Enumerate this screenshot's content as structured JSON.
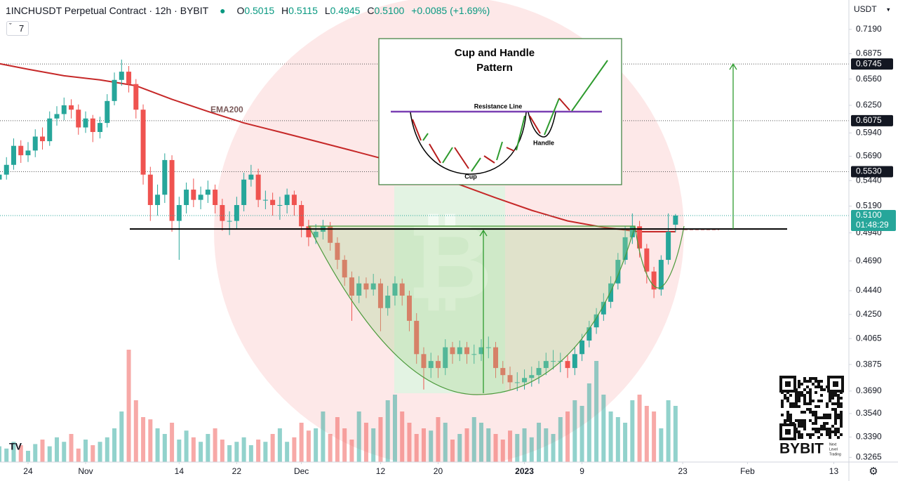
{
  "chart_data": {
    "type": "candlestick",
    "title": "1INCHUSDT Perpetual Contract · 12h · BYBIT",
    "header": {
      "open_label": "O",
      "open": "0.5015",
      "high_label": "H",
      "high": "0.5115",
      "low_label": "L",
      "low": "0.4945",
      "close_label": "C",
      "close": "0.5100",
      "change": "+0.0085 (+1.69%)"
    },
    "currency": "USDT",
    "indicator_count": "7",
    "log_scale": true,
    "up_color": "#26a69a",
    "down_color": "#ef5350",
    "ylim": [
      0.3237,
      0.759
    ],
    "yticks": [
      {
        "value": 0.719,
        "label": "0.7190"
      },
      0.6875,
      {
        "value": 0.656,
        "label": "0.6560"
      },
      {
        "value": 0.625,
        "label": "0.6250"
      },
      {
        "value": 0.594,
        "label": "0.5940"
      },
      {
        "value": 0.569,
        "label": "0.5690"
      },
      {
        "value": 0.544,
        "label": "0.5440"
      },
      {
        "value": 0.519,
        "label": "0.5190"
      },
      {
        "value": 0.494,
        "label": "0.4940"
      },
      {
        "value": 0.469,
        "label": "0.4690"
      },
      {
        "value": 0.444,
        "label": "0.4440"
      },
      {
        "value": 0.425,
        "label": "0.4250"
      },
      0.4065,
      0.3875,
      {
        "value": 0.369,
        "label": "0.3690"
      },
      {
        "value": 0.354,
        "label": "0.3540"
      },
      {
        "value": 0.339,
        "label": "0.3390"
      },
      0.3265
    ],
    "xlim": [
      -3.9,
      114.1
    ],
    "xticks": [
      {
        "value": 0,
        "label": "24"
      },
      {
        "value": 8,
        "label": "Nov"
      },
      {
        "value": 21,
        "label": "14"
      },
      {
        "value": 29,
        "label": "22"
      },
      {
        "value": 38,
        "label": "Dec"
      },
      {
        "value": 49,
        "label": "12"
      },
      {
        "value": 57,
        "label": "20"
      },
      {
        "value": 69,
        "label": "2023"
      },
      {
        "value": 77,
        "label": "9"
      },
      {
        "value": 91,
        "label": "23"
      },
      {
        "value": 100,
        "label": "Feb"
      },
      {
        "value": 112,
        "label": "13"
      }
    ],
    "x": [
      -4,
      -3,
      -2,
      -1,
      0,
      1,
      2,
      3,
      4,
      5,
      6,
      7,
      8,
      9,
      10,
      11,
      12,
      13,
      14,
      15,
      16,
      17,
      18,
      19,
      20,
      21,
      22,
      23,
      24,
      25,
      26,
      27,
      28,
      29,
      30,
      31,
      32,
      33,
      34,
      35,
      36,
      37,
      38,
      39,
      40,
      41,
      42,
      43,
      44,
      45,
      46,
      47,
      48,
      49,
      50,
      51,
      52,
      53,
      54,
      55,
      56,
      57,
      58,
      59,
      60,
      61,
      62,
      63,
      64,
      65,
      66,
      67,
      68,
      69,
      70,
      71,
      72,
      73,
      74,
      75,
      76,
      77,
      78,
      79,
      80,
      81,
      82,
      83,
      84,
      85,
      86,
      87,
      88,
      89,
      90
    ],
    "ohlc": [
      [
        0.545,
        0.562,
        0.538,
        0.55
      ],
      [
        0.55,
        0.568,
        0.545,
        0.56
      ],
      [
        0.56,
        0.588,
        0.555,
        0.58
      ],
      [
        0.58,
        0.586,
        0.562,
        0.57
      ],
      [
        0.57,
        0.584,
        0.563,
        0.575
      ],
      [
        0.575,
        0.598,
        0.568,
        0.59
      ],
      [
        0.59,
        0.6,
        0.576,
        0.585
      ],
      [
        0.585,
        0.618,
        0.58,
        0.61
      ],
      [
        0.61,
        0.624,
        0.602,
        0.615
      ],
      [
        0.615,
        0.634,
        0.608,
        0.625
      ],
      [
        0.625,
        0.632,
        0.61,
        0.62
      ],
      [
        0.62,
        0.626,
        0.592,
        0.6
      ],
      [
        0.6,
        0.618,
        0.594,
        0.61
      ],
      [
        0.61,
        0.614,
        0.584,
        0.595
      ],
      [
        0.595,
        0.612,
        0.588,
        0.605
      ],
      [
        0.605,
        0.638,
        0.6,
        0.63
      ],
      [
        0.63,
        0.664,
        0.625,
        0.655
      ],
      [
        0.655,
        0.68,
        0.648,
        0.665
      ],
      [
        0.665,
        0.672,
        0.64,
        0.65
      ],
      [
        0.65,
        0.656,
        0.61,
        0.62
      ],
      [
        0.62,
        0.626,
        0.54,
        0.55
      ],
      [
        0.55,
        0.558,
        0.505,
        0.52
      ],
      [
        0.52,
        0.54,
        0.51,
        0.53
      ],
      [
        0.53,
        0.572,
        0.522,
        0.565
      ],
      [
        0.565,
        0.57,
        0.495,
        0.505
      ],
      [
        0.505,
        0.528,
        0.47,
        0.52
      ],
      [
        0.52,
        0.542,
        0.512,
        0.535
      ],
      [
        0.535,
        0.546,
        0.518,
        0.525
      ],
      [
        0.525,
        0.538,
        0.516,
        0.53
      ],
      [
        0.53,
        0.544,
        0.522,
        0.535
      ],
      [
        0.535,
        0.54,
        0.512,
        0.52
      ],
      [
        0.52,
        0.526,
        0.496,
        0.505
      ],
      [
        0.505,
        0.514,
        0.492,
        0.505
      ],
      [
        0.505,
        0.528,
        0.498,
        0.52
      ],
      [
        0.52,
        0.552,
        0.514,
        0.545
      ],
      [
        0.545,
        0.56,
        0.538,
        0.55
      ],
      [
        0.55,
        0.556,
        0.518,
        0.525
      ],
      [
        0.525,
        0.534,
        0.516,
        0.525
      ],
      [
        0.525,
        0.532,
        0.51,
        0.52
      ],
      [
        0.52,
        0.528,
        0.506,
        0.52
      ],
      [
        0.52,
        0.536,
        0.512,
        0.53
      ],
      [
        0.53,
        0.534,
        0.51,
        0.52
      ],
      [
        0.52,
        0.524,
        0.49,
        0.5
      ],
      [
        0.5,
        0.506,
        0.482,
        0.49
      ],
      [
        0.49,
        0.502,
        0.484,
        0.495
      ],
      [
        0.495,
        0.506,
        0.488,
        0.5
      ],
      [
        0.5,
        0.504,
        0.478,
        0.485
      ],
      [
        0.485,
        0.49,
        0.462,
        0.47
      ],
      [
        0.47,
        0.474,
        0.448,
        0.455
      ],
      [
        0.455,
        0.46,
        0.42,
        0.44
      ],
      [
        0.44,
        0.456,
        0.434,
        0.45
      ],
      [
        0.45,
        0.455,
        0.438,
        0.445
      ],
      [
        0.445,
        0.458,
        0.44,
        0.45
      ],
      [
        0.45,
        0.454,
        0.412,
        0.43
      ],
      [
        0.43,
        0.448,
        0.424,
        0.44
      ],
      [
        0.44,
        0.456,
        0.432,
        0.45
      ],
      [
        0.45,
        0.454,
        0.432,
        0.44
      ],
      [
        0.44,
        0.444,
        0.412,
        0.42
      ],
      [
        0.42,
        0.426,
        0.388,
        0.395
      ],
      [
        0.395,
        0.4,
        0.37,
        0.385
      ],
      [
        0.385,
        0.396,
        0.378,
        0.39
      ],
      [
        0.39,
        0.394,
        0.378,
        0.385
      ],
      [
        0.385,
        0.406,
        0.38,
        0.4
      ],
      [
        0.4,
        0.404,
        0.388,
        0.395
      ],
      [
        0.395,
        0.405,
        0.39,
        0.4
      ],
      [
        0.4,
        0.404,
        0.388,
        0.395
      ],
      [
        0.395,
        0.402,
        0.388,
        0.395
      ],
      [
        0.395,
        0.406,
        0.39,
        0.4
      ],
      [
        0.4,
        0.408,
        0.392,
        0.4
      ],
      [
        0.4,
        0.404,
        0.378,
        0.385
      ],
      [
        0.385,
        0.39,
        0.374,
        0.38
      ],
      [
        0.38,
        0.386,
        0.37,
        0.375
      ],
      [
        0.375,
        0.382,
        0.369,
        0.375
      ],
      [
        0.375,
        0.384,
        0.37,
        0.378
      ],
      [
        0.378,
        0.386,
        0.372,
        0.38
      ],
      [
        0.38,
        0.39,
        0.374,
        0.385
      ],
      [
        0.385,
        0.396,
        0.38,
        0.39
      ],
      [
        0.39,
        0.398,
        0.384,
        0.39
      ],
      [
        0.39,
        0.396,
        0.382,
        0.39
      ],
      [
        0.39,
        0.394,
        0.378,
        0.385
      ],
      [
        0.385,
        0.4,
        0.38,
        0.395
      ],
      [
        0.395,
        0.41,
        0.39,
        0.405
      ],
      [
        0.405,
        0.42,
        0.4,
        0.415
      ],
      [
        0.415,
        0.43,
        0.41,
        0.425
      ],
      [
        0.425,
        0.442,
        0.42,
        0.435
      ],
      [
        0.435,
        0.456,
        0.43,
        0.45
      ],
      [
        0.45,
        0.476,
        0.445,
        0.47
      ],
      [
        0.47,
        0.5,
        0.466,
        0.49
      ],
      [
        0.49,
        0.512,
        0.484,
        0.5
      ],
      [
        0.5,
        0.505,
        0.472,
        0.48
      ],
      [
        0.48,
        0.484,
        0.45,
        0.46
      ],
      [
        0.46,
        0.464,
        0.438,
        0.445
      ],
      [
        0.445,
        0.474,
        0.44,
        0.47
      ],
      [
        0.47,
        0.512,
        0.466,
        0.495
      ],
      [
        0.5015,
        0.5115,
        0.4945,
        0.51
      ]
    ],
    "volume": [
      14,
      12,
      18,
      15,
      10,
      16,
      20,
      14,
      22,
      18,
      25,
      12,
      20,
      15,
      18,
      22,
      30,
      45,
      100,
      55,
      40,
      38,
      30,
      25,
      35,
      20,
      28,
      22,
      18,
      25,
      30,
      20,
      15,
      18,
      22,
      15,
      20,
      18,
      25,
      30,
      18,
      22,
      35,
      28,
      30,
      45,
      25,
      40,
      30,
      20,
      45,
      35,
      30,
      40,
      55,
      60,
      45,
      35,
      25,
      30,
      28,
      40,
      35,
      20,
      25,
      30,
      40,
      35,
      30,
      25,
      20,
      28,
      25,
      30,
      22,
      35,
      30,
      25,
      40,
      45,
      55,
      50,
      70,
      90,
      60,
      45,
      40,
      35,
      55,
      60,
      50,
      45,
      30,
      55,
      50
    ],
    "ema": {
      "name": "EMA200",
      "color": "#c62828",
      "x": [
        -4,
        0,
        5,
        10,
        15,
        20,
        25,
        30,
        35,
        40,
        45,
        50,
        55,
        60,
        65,
        70,
        75,
        80,
        85,
        90
      ],
      "values": [
        0.675,
        0.668,
        0.66,
        0.655,
        0.648,
        0.632,
        0.618,
        0.605,
        0.595,
        0.585,
        0.575,
        0.565,
        0.553,
        0.54,
        0.527,
        0.515,
        0.505,
        0.499,
        0.495,
        0.495
      ]
    },
    "levels": [
      0.6745,
      0.6075,
      {
        "value": 0.553,
        "label": "0.5530"
      }
    ],
    "resistance": 0.4975,
    "price_tag": {
      "value": 0.51,
      "label": "0.5100",
      "countdown": "01:48:29"
    },
    "inset": {
      "title_1": "Cup and Handle",
      "title_2": "Pattern",
      "resistance": "Resistance Line",
      "cup": "Cup",
      "handle": "Handle"
    },
    "brand": {
      "name": "BYBIT",
      "tagline_1": "Next",
      "tagline_2": "Level",
      "tagline_3": "Trading"
    }
  }
}
